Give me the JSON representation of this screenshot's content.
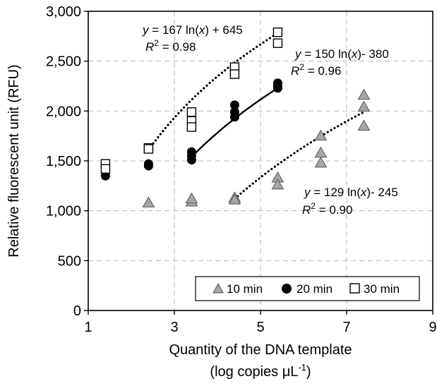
{
  "chart_data": {
    "type": "scatter",
    "xlabel": "Quantity of the DNA template",
    "xlabel_line2": "(log copies μL",
    "xlabel_exp": "-1",
    "xlabel_close": ")",
    "ylabel": "Relative fluorescent unit (RFU)",
    "xlim": [
      1,
      9
    ],
    "ylim": [
      0,
      3000
    ],
    "x_ticks": [
      1,
      3,
      5,
      7,
      9
    ],
    "y_ticks": [
      0,
      500,
      1000,
      1500,
      2000,
      2500,
      3000
    ],
    "y_tick_labels": [
      "0",
      "500",
      "1,000",
      "1,500",
      "2,000",
      "2,500",
      "3,000"
    ],
    "grid": true,
    "legend_position": "bottom-right",
    "series": [
      {
        "name": "10 min",
        "marker": "triangle",
        "color": "#a6a6a6",
        "points": [
          [
            2.4,
            1080
          ],
          [
            3.4,
            1090
          ],
          [
            3.4,
            1120
          ],
          [
            4.4,
            1130
          ],
          [
            4.4,
            1110
          ],
          [
            5.4,
            1330
          ],
          [
            5.4,
            1260
          ],
          [
            6.4,
            1750
          ],
          [
            6.4,
            1580
          ],
          [
            6.4,
            1480
          ],
          [
            7.4,
            2160
          ],
          [
            7.4,
            2040
          ],
          [
            7.4,
            1850
          ]
        ],
        "trend": {
          "x": [
            4.4,
            7.4
          ],
          "y": [
            1120,
            1990
          ],
          "style": "dotted"
        }
      },
      {
        "name": "20 min",
        "marker": "circle",
        "color": "#000000",
        "points": [
          [
            1.4,
            1350
          ],
          [
            2.4,
            1470
          ],
          [
            2.4,
            1450
          ],
          [
            3.4,
            1590
          ],
          [
            3.4,
            1550
          ],
          [
            3.4,
            1510
          ],
          [
            4.4,
            2060
          ],
          [
            4.4,
            1990
          ],
          [
            4.4,
            1940
          ],
          [
            5.4,
            2280
          ],
          [
            5.4,
            2250
          ],
          [
            5.4,
            2230
          ]
        ],
        "trend": {
          "x": [
            3.4,
            5.4
          ],
          "y": [
            1540,
            2230
          ],
          "style": "solid"
        }
      },
      {
        "name": "30 min",
        "marker": "square",
        "color": "#ffffff",
        "points": [
          [
            1.4,
            1470
          ],
          [
            1.4,
            1420
          ],
          [
            2.4,
            1630
          ],
          [
            2.4,
            1620
          ],
          [
            3.4,
            1990
          ],
          [
            3.4,
            1900
          ],
          [
            3.4,
            1840
          ],
          [
            4.4,
            2440
          ],
          [
            4.4,
            2370
          ],
          [
            5.4,
            2790
          ],
          [
            5.4,
            2680
          ]
        ],
        "trend": {
          "x": [
            2.4,
            5.4
          ],
          "y": [
            1610,
            2780
          ],
          "style": "dotted"
        }
      }
    ],
    "annotations": [
      {
        "id": "eq30",
        "eq_pre": "y",
        "eq_mid": " = 167 ln(",
        "eq_x": "x",
        "eq_post": ") + 645",
        "r2_label": "R",
        "r2_value": " = 0.98",
        "anchor_x": 1.0,
        "anchor_y": 0.0
      },
      {
        "id": "eq20",
        "eq_pre": "y",
        "eq_mid": " = 150 ln(",
        "eq_x": "x",
        "eq_post": ")- 380",
        "r2_label": "R",
        "r2_value": " = 0.96",
        "anchor_x": 0.0,
        "anchor_y": 0.0
      },
      {
        "id": "eq10",
        "eq_pre": "y",
        "eq_mid": " = 129 ln(",
        "eq_x": "x",
        "eq_post": ")- 245",
        "r2_label": "R",
        "r2_value": " = 0.90",
        "anchor_x": 0.0,
        "anchor_y": 0.0
      }
    ]
  }
}
